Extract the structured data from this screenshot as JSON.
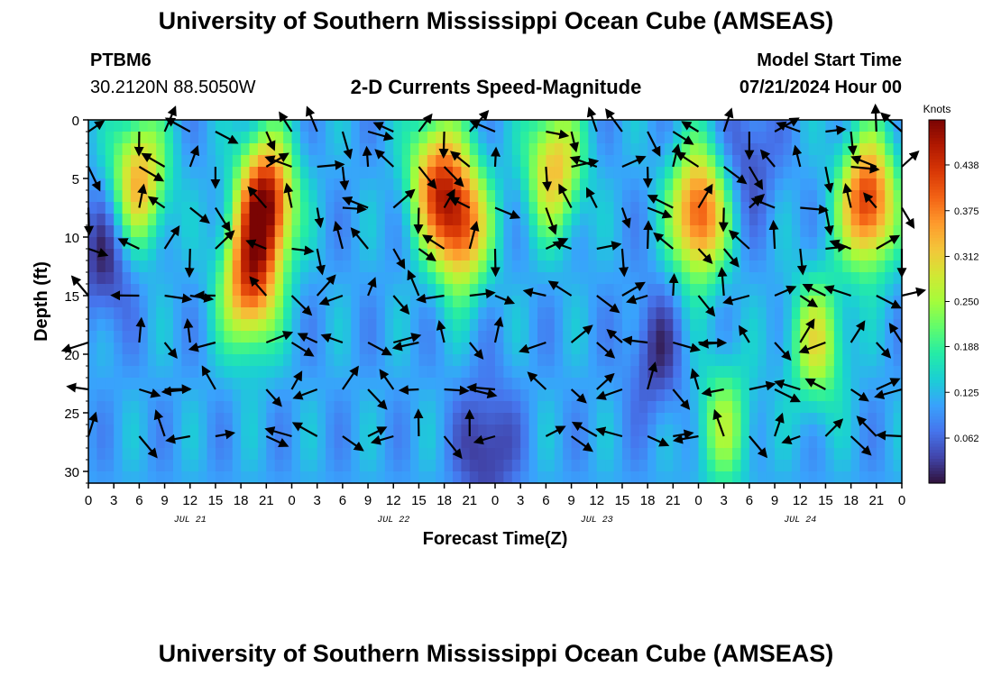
{
  "header": {
    "title": "University of Southern Mississippi Ocean Cube (AMSEAS)",
    "station_id": "PTBM6",
    "station_coords": "30.2120N  88.5050W",
    "product": "2-D Currents Speed-Magnitude",
    "model_start_label": "Model Start Time",
    "model_start_value": "07/21/2024 Hour 00"
  },
  "footer": {
    "title": "University of Southern Mississippi Ocean Cube (AMSEAS)"
  },
  "colors": {
    "background": "#ffffff",
    "arrow": "#000000",
    "colormap": [
      "#30123b",
      "#4145ab",
      "#4675ed",
      "#39a2fc",
      "#1bcfd4",
      "#24eca6",
      "#61fc6c",
      "#a4fc3b",
      "#d1e834",
      "#f3c63a",
      "#fe9b2d",
      "#f36315",
      "#d93806",
      "#b11901",
      "#7a0403"
    ]
  },
  "chart_data": {
    "type": "heatmap",
    "title": "2-D Currents Speed-Magnitude",
    "xlabel": "Forecast Time(Z)",
    "ylabel": "Depth (ft)",
    "x_range_hours": [
      0,
      96
    ],
    "y_range_ft": [
      0,
      31
    ],
    "y_ticks": [
      0,
      5,
      10,
      15,
      20,
      25,
      30
    ],
    "x_tick_labels": [
      "0",
      "3",
      "6",
      "9",
      "12",
      "15",
      "18",
      "21",
      "0",
      "3",
      "6",
      "9",
      "12",
      "15",
      "18",
      "21",
      "0",
      "3",
      "6",
      "9",
      "12",
      "15",
      "18",
      "21",
      "0",
      "3",
      "6",
      "9",
      "12",
      "15",
      "18",
      "21",
      "0"
    ],
    "date_labels": [
      {
        "text": "JUL 21",
        "hour": 12
      },
      {
        "text": "JUL 22",
        "hour": 36
      },
      {
        "text": "JUL 23",
        "hour": 60
      },
      {
        "text": "JUL 24",
        "hour": 84
      }
    ],
    "colorbar": {
      "unit": "Knots",
      "range": [
        0.0,
        0.5
      ],
      "tick_values": [
        0.062,
        0.125,
        0.188,
        0.25,
        0.312,
        0.375,
        0.438
      ],
      "tick_labels": [
        "0.062",
        "0.125",
        "0.188",
        "0.250",
        "0.312",
        "0.375",
        "0.438"
      ]
    },
    "arrow_depths_ft": [
      1,
      4,
      7.5,
      11,
      15,
      19,
      23,
      27
    ],
    "arrow_hours": [
      0,
      6,
      9,
      12,
      15,
      21,
      24,
      27,
      30,
      33,
      36,
      39,
      42,
      45,
      48,
      54,
      57,
      60,
      63,
      66,
      69,
      72,
      75,
      78,
      81,
      84,
      87,
      90,
      93,
      96
    ],
    "speed_features": [
      {
        "hour": 6,
        "depth_ft": 5,
        "speed": 0.34
      },
      {
        "hour": 21,
        "depth_ft": 7,
        "speed": 0.48
      },
      {
        "hour": 19,
        "depth_ft": 14,
        "speed": 0.4
      },
      {
        "hour": 41,
        "depth_ft": 5,
        "speed": 0.35
      },
      {
        "hour": 44,
        "depth_ft": 9,
        "speed": 0.4
      },
      {
        "hour": 55,
        "depth_ft": 4,
        "speed": 0.33
      },
      {
        "hour": 72,
        "depth_ft": 8,
        "speed": 0.42
      },
      {
        "hour": 92,
        "depth_ft": 7,
        "speed": 0.44
      },
      {
        "hour": 86,
        "depth_ft": 19,
        "speed": 0.28
      },
      {
        "hour": 75,
        "depth_ft": 26,
        "speed": 0.24
      },
      {
        "hour": 2,
        "depth_ft": 12,
        "speed": 0.02
      },
      {
        "hour": 47,
        "depth_ft": 28,
        "speed": 0.01
      },
      {
        "hour": 67,
        "depth_ft": 20,
        "speed": 0.03
      },
      {
        "hour": 78,
        "depth_ft": 3,
        "speed": 0.04
      }
    ]
  }
}
